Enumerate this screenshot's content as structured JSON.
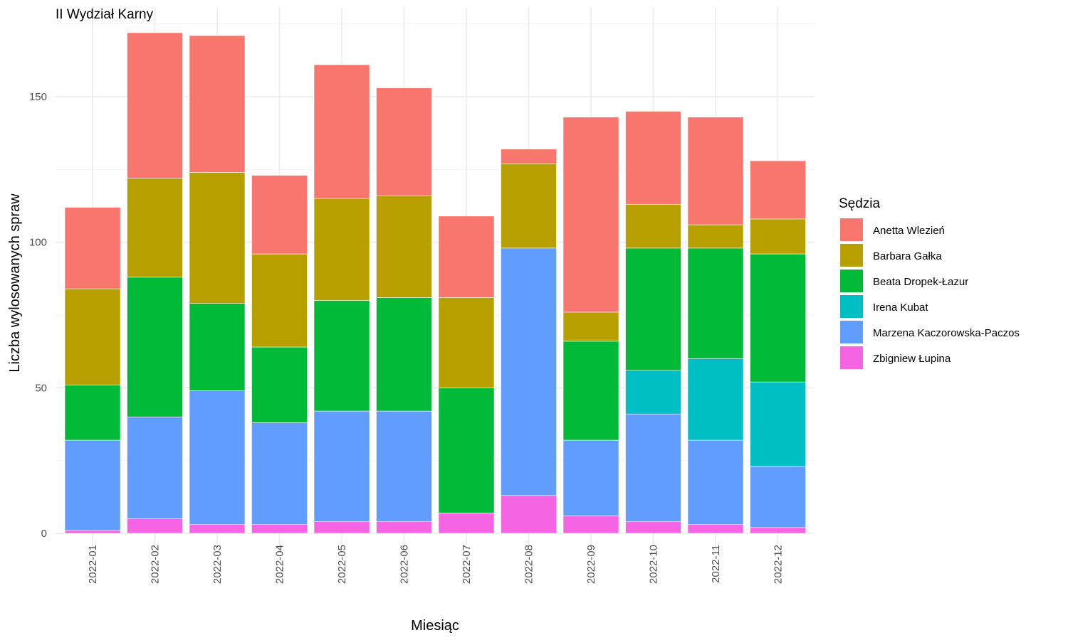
{
  "chart_data": {
    "type": "bar",
    "stacked": true,
    "title": "II Wydział Karny",
    "xlabel": "Miesiąc",
    "ylabel": "Liczba wylosowanych spraw",
    "ylim": [
      0,
      175
    ],
    "yticks": [
      0,
      50,
      100,
      150
    ],
    "grid": true,
    "legend_title": "Sędzia",
    "legend_position": "right",
    "categories": [
      "2022-01",
      "2022-02",
      "2022-03",
      "2022-04",
      "2022-05",
      "2022-06",
      "2022-07",
      "2022-08",
      "2022-09",
      "2022-10",
      "2022-11",
      "2022-12"
    ],
    "series": [
      {
        "name": "Anetta Wlezień",
        "color": "#F8766D",
        "values": [
          28,
          50,
          47,
          27,
          46,
          37,
          28,
          5,
          67,
          32,
          37,
          20
        ]
      },
      {
        "name": "Barbara Gałka",
        "color": "#B79F00",
        "values": [
          33,
          34,
          45,
          32,
          35,
          35,
          31,
          29,
          10,
          15,
          8,
          12
        ]
      },
      {
        "name": "Beata Dropek-Łazur",
        "color": "#00BA38",
        "values": [
          19,
          48,
          30,
          26,
          38,
          39,
          43,
          0,
          34,
          42,
          38,
          44
        ]
      },
      {
        "name": "Irena Kubat",
        "color": "#00BFC4",
        "values": [
          0,
          0,
          0,
          0,
          0,
          0,
          0,
          0,
          0,
          15,
          28,
          29
        ]
      },
      {
        "name": "Marzena Kaczorowska-Paczos",
        "color": "#619CFF",
        "values": [
          31,
          35,
          46,
          35,
          38,
          38,
          0,
          85,
          26,
          37,
          29,
          21
        ]
      },
      {
        "name": "Zbigniew Łupina",
        "color": "#F564E3",
        "values": [
          1,
          5,
          3,
          3,
          4,
          4,
          7,
          13,
          6,
          4,
          3,
          2
        ]
      }
    ]
  }
}
